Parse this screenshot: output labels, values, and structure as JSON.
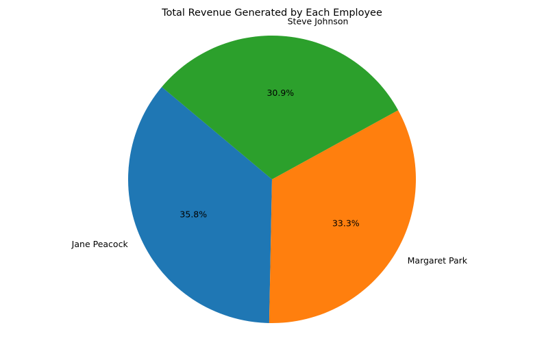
{
  "chart_data": {
    "type": "pie",
    "title": "Total Revenue Generated by Each Employee",
    "slices": [
      {
        "label": "Jane Peacock",
        "percent": 35.8,
        "percent_label": "35.8%",
        "color": "#1f77b4"
      },
      {
        "label": "Margaret Park",
        "percent": 33.3,
        "percent_label": "33.3%",
        "color": "#ff7f0e"
      },
      {
        "label": "Steve Johnson",
        "percent": 30.9,
        "percent_label": "30.9%",
        "color": "#2ca02c"
      }
    ],
    "start_angle_deg": 140,
    "direction": "counterclockwise"
  }
}
